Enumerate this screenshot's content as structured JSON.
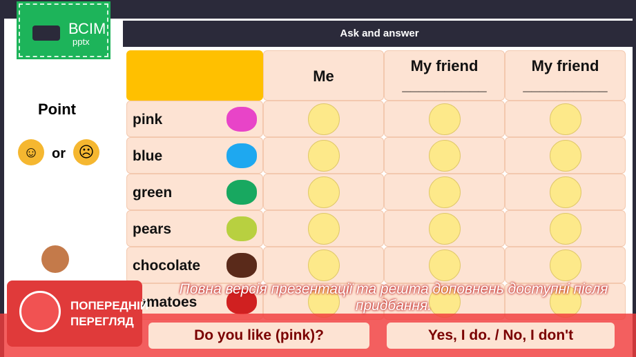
{
  "logo": {
    "title": "ВСІМ",
    "subtitle": "pptx"
  },
  "header": {
    "title": "Ask and answer"
  },
  "left": {
    "point": "Point",
    "or": "or"
  },
  "table": {
    "columns": [
      "",
      "Me",
      "My friend\n__________",
      "My friend\n__________"
    ],
    "rows": [
      {
        "label": "pink",
        "color": "#e844c8"
      },
      {
        "label": "blue",
        "color": "#1ea8f0"
      },
      {
        "label": "green",
        "color": "#18a860"
      },
      {
        "label": "pears",
        "color": "#b8d040"
      },
      {
        "label": "chocolate",
        "color": "#5a2a1a"
      },
      {
        "label": "tomatoes",
        "color": "#d02020"
      }
    ]
  },
  "bottom": {
    "question": "Do you like (pink)?",
    "answer": "Yes, I do. / No, I don't"
  },
  "overlay": {
    "badge": "ПОПЕРЕДНІЙ ПЕРЕГЛЯД",
    "note": "Повна версія презентації та решта доповнень доступні після придбання."
  }
}
